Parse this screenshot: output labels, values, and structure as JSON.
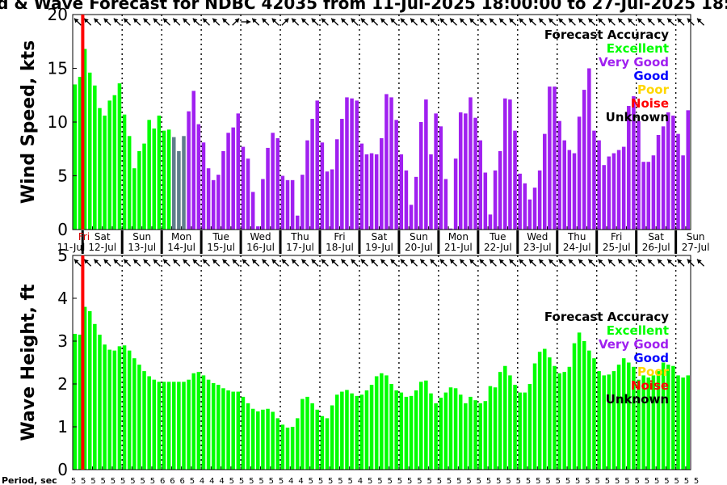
{
  "title": "d & Wave Forecast for NDBC 42035 from 11-Jul-2025 18:00:00 to 27-Jul-2025 18:",
  "legend": {
    "title": "Forecast Accuracy",
    "items": [
      {
        "label": "Excellent",
        "color": "#00ff00"
      },
      {
        "label": "Very Good",
        "color": "#a020f0"
      },
      {
        "label": "Good",
        "color": "#0000ff"
      },
      {
        "label": "Poor",
        "color": "#ffd700"
      },
      {
        "label": "Noise",
        "color": "#ff0000"
      },
      {
        "label": "Unknown",
        "color": "#000000"
      }
    ]
  },
  "days": [
    {
      "dow": "Fri",
      "date": "11-Jul"
    },
    {
      "dow": "Sat",
      "date": "12-Jul"
    },
    {
      "dow": "Sun",
      "date": "13-Jul"
    },
    {
      "dow": "Mon",
      "date": "14-Jul"
    },
    {
      "dow": "Tue",
      "date": "15-Jul"
    },
    {
      "dow": "Wed",
      "date": "16-Jul"
    },
    {
      "dow": "Thu",
      "date": "17-Jul"
    },
    {
      "dow": "Fri",
      "date": "18-Jul"
    },
    {
      "dow": "Sat",
      "date": "19-Jul"
    },
    {
      "dow": "Sun",
      "date": "20-Jul"
    },
    {
      "dow": "Mon",
      "date": "21-Jul"
    },
    {
      "dow": "Tue",
      "date": "22-Jul"
    },
    {
      "dow": "Wed",
      "date": "23-Jul"
    },
    {
      "dow": "Thu",
      "date": "24-Jul"
    },
    {
      "dow": "Fri",
      "date": "25-Jul"
    },
    {
      "dow": "Sat",
      "date": "26-Jul"
    },
    {
      "dow": "Sun",
      "date": "27-Jul"
    }
  ],
  "period_label": "Period, sec",
  "colors": {
    "excellent": "#00ff00",
    "very_good": "#a020f0",
    "mixed": "#607d8b",
    "now_line": "#ff0000",
    "grid": "#000000"
  },
  "chart_data": [
    {
      "type": "bar",
      "name": "wind",
      "ylabel": "Wind Speed, kts",
      "ylim": [
        0,
        20
      ],
      "yticks": [
        0,
        5,
        10,
        15,
        20
      ],
      "grid": "vertical dotted at midnight",
      "legend_position": "top-right",
      "time_step_hours": 3,
      "start": "11-Jul-2025 18:00",
      "values": [
        13.5,
        14.2,
        16.8,
        14.6,
        13.4,
        11.3,
        10.6,
        12.0,
        12.5,
        13.6,
        10.7,
        8.7,
        5.7,
        7.3,
        8.0,
        10.2,
        9.4,
        10.6,
        9.2,
        9.3,
        8.6,
        7.3,
        8.7,
        11.0,
        12.9,
        9.8,
        8.1,
        5.7,
        4.6,
        5.1,
        7.3,
        9.0,
        9.5,
        10.8,
        7.7,
        6.6,
        3.5,
        0.3,
        4.7,
        7.6,
        9.0,
        8.5,
        5.0,
        4.6,
        4.6,
        1.3,
        5.1,
        8.3,
        10.3,
        12.0,
        8.1,
        5.4,
        5.6,
        8.4,
        10.3,
        12.3,
        12.2,
        12.0,
        8.0,
        7.0,
        7.1,
        7.0,
        8.5,
        12.6,
        12.3,
        10.2,
        7.0,
        5.5,
        2.3,
        4.9,
        10.0,
        12.1,
        7.0,
        10.8,
        9.6,
        4.7,
        0.1,
        6.6,
        10.9,
        10.8,
        12.3,
        10.4,
        8.3,
        5.3,
        1.4,
        5.5,
        7.3,
        12.2,
        12.1,
        9.2,
        5.2,
        4.3,
        2.8,
        3.9,
        5.5,
        8.9,
        13.3,
        13.3,
        10.1,
        8.3,
        7.4,
        7.1,
        10.5,
        13.0,
        15.0,
        9.2,
        8.3,
        6.0,
        6.8,
        7.1,
        7.4,
        7.7,
        11.5,
        12.4,
        10.1,
        6.3,
        6.3,
        6.9,
        8.8,
        9.6,
        10.9,
        10.6,
        8.9,
        6.9,
        11.1
      ],
      "accuracy": [
        "excellent",
        "excellent",
        "excellent",
        "excellent",
        "excellent",
        "excellent",
        "excellent",
        "excellent",
        "excellent",
        "excellent",
        "excellent",
        "excellent",
        "excellent",
        "excellent",
        "excellent",
        "excellent",
        "excellent",
        "excellent",
        "excellent",
        "excellent",
        "mixed",
        "mixed",
        "mixed",
        "very_good",
        "very_good",
        "very_good",
        "very_good",
        "very_good",
        "very_good",
        "very_good",
        "very_good",
        "very_good",
        "very_good",
        "very_good",
        "very_good",
        "very_good",
        "very_good",
        "very_good",
        "very_good",
        "very_good",
        "very_good",
        "very_good",
        "very_good",
        "very_good",
        "very_good",
        "very_good",
        "very_good",
        "very_good",
        "very_good",
        "very_good",
        "very_good",
        "very_good",
        "very_good",
        "very_good",
        "very_good",
        "very_good",
        "very_good",
        "very_good",
        "very_good",
        "very_good",
        "very_good",
        "very_good",
        "very_good",
        "very_good",
        "very_good",
        "very_good",
        "very_good",
        "very_good",
        "very_good",
        "very_good",
        "very_good",
        "very_good",
        "very_good",
        "very_good",
        "very_good",
        "very_good",
        "very_good",
        "very_good",
        "very_good",
        "very_good",
        "very_good",
        "very_good",
        "very_good",
        "very_good",
        "very_good",
        "very_good",
        "very_good",
        "very_good",
        "very_good",
        "very_good",
        "very_good",
        "very_good",
        "very_good",
        "very_good",
        "very_good",
        "very_good",
        "very_good",
        "very_good",
        "very_good",
        "very_good",
        "very_good",
        "very_good",
        "very_good",
        "very_good",
        "very_good",
        "very_good",
        "very_good",
        "very_good",
        "very_good",
        "very_good",
        "very_good",
        "very_good",
        "very_good",
        "very_good",
        "very_good",
        "very_good",
        "very_good",
        "very_good",
        "very_good",
        "very_good",
        "very_good",
        "very_good",
        "very_good",
        "very_good",
        "very_good"
      ],
      "arrows": [
        "NW",
        "NW",
        "NW",
        "NW",
        "NW",
        "NW",
        "NW",
        "NW",
        "NW",
        "NW",
        "NW",
        "NW",
        "NW",
        "NW",
        "NW",
        "NW",
        "NW",
        "NW",
        "NW",
        "NW",
        "NW",
        "NW",
        "NW",
        "NW",
        "NW",
        "NW",
        "NW",
        "NW",
        "NW",
        "NW",
        "NW",
        "NW",
        "NE",
        "E",
        "E",
        "E",
        "NW",
        "NW",
        "NW",
        "E",
        "NW",
        "NW",
        "NE",
        "NW",
        "NW",
        "NW",
        "NW",
        "NW",
        "NW",
        "NW",
        "NW",
        "NW",
        "NW",
        "NW",
        "NW",
        "NW",
        "NW",
        "NW",
        "NW",
        "NW",
        "NW",
        "NW",
        "NW",
        "NW",
        "NW",
        "NW",
        "NW",
        "NW",
        "NW",
        "NW",
        "NW",
        "NW",
        "NW",
        "NW",
        "NW",
        "NW",
        "NW",
        "NW",
        "NW",
        "NW",
        "NW",
        "NW",
        "NW",
        "NW",
        "NW",
        "NW",
        "NW",
        "NW",
        "NW",
        "NW",
        "NW",
        "NW",
        "NW",
        "NW",
        "NW",
        "NW",
        "NW",
        "NW",
        "NW",
        "NW",
        "NW",
        "NW",
        "NW",
        "NW",
        "NW",
        "NW",
        "NW",
        "NW",
        "NW",
        "NW",
        "NW",
        "NW",
        "NW",
        "NW",
        "NW",
        "NW",
        "NW",
        "NW",
        "NW",
        "NW",
        "NW",
        "NW",
        "NW",
        "NW",
        "NW",
        "NW",
        "NW",
        "NW"
      ]
    },
    {
      "type": "bar",
      "name": "wave",
      "ylabel": "Wave Height, ft",
      "ylim": [
        0,
        5
      ],
      "yticks": [
        0,
        1,
        2,
        3,
        4,
        5
      ],
      "grid": "vertical dotted at midnight",
      "legend_position": "top-right",
      "time_step_hours": 3,
      "start": "11-Jul-2025 18:00",
      "values": [
        3.17,
        3.15,
        3.8,
        3.7,
        3.4,
        3.15,
        2.92,
        2.8,
        2.78,
        2.88,
        2.9,
        2.78,
        2.6,
        2.45,
        2.3,
        2.18,
        2.1,
        2.05,
        2.05,
        2.05,
        2.05,
        2.05,
        2.05,
        2.1,
        2.25,
        2.28,
        2.2,
        2.1,
        2.02,
        1.98,
        1.9,
        1.85,
        1.82,
        1.82,
        1.7,
        1.55,
        1.42,
        1.36,
        1.4,
        1.42,
        1.35,
        1.2,
        1.05,
        0.98,
        1.0,
        1.2,
        1.65,
        1.7,
        1.55,
        1.4,
        1.25,
        1.2,
        1.5,
        1.75,
        1.82,
        1.86,
        1.78,
        1.72,
        1.75,
        1.85,
        1.98,
        2.18,
        2.25,
        2.2,
        2.0,
        1.85,
        1.8,
        1.7,
        1.72,
        1.85,
        2.05,
        2.08,
        1.78,
        1.55,
        1.68,
        1.8,
        1.92,
        1.9,
        1.75,
        1.55,
        1.7,
        1.62,
        1.55,
        1.6,
        1.95,
        1.92,
        2.28,
        2.42,
        2.2,
        1.98,
        1.8,
        1.8,
        2.0,
        2.48,
        2.75,
        2.82,
        2.62,
        2.42,
        2.25,
        2.28,
        2.4,
        2.95,
        3.2,
        3.0,
        2.78,
        2.6,
        2.3,
        2.2,
        2.22,
        2.3,
        2.45,
        2.6,
        2.5,
        2.4,
        2.1,
        2.2,
        2.15,
        2.2,
        2.3,
        2.5,
        2.45,
        2.42,
        2.2,
        2.15,
        2.2
      ],
      "accuracy_all": "excellent",
      "arrows": [
        "NW",
        "NW",
        "NW",
        "NW",
        "NW",
        "NW",
        "NW",
        "NW",
        "NW",
        "NW",
        "NW",
        "NW",
        "NW",
        "NW",
        "NW",
        "NW",
        "NW",
        "NW",
        "NW",
        "NW",
        "NW",
        "NW",
        "NW",
        "NW",
        "NW",
        "NW",
        "NW",
        "NW",
        "NW",
        "NW",
        "NW",
        "NW",
        "NW",
        "NW",
        "NW",
        "NW",
        "NW",
        "NW",
        "NW",
        "NW",
        "NW",
        "NW",
        "NW",
        "NW",
        "NW",
        "NW",
        "NW",
        "NW",
        "NW",
        "NW",
        "NW",
        "NW",
        "NW",
        "NW",
        "NW",
        "NW",
        "NW",
        "NW",
        "NW",
        "NW",
        "NW",
        "NW",
        "NW",
        "NW",
        "NW",
        "NW",
        "NW",
        "NW",
        "NW",
        "NW",
        "NW",
        "NW",
        "NW",
        "NW",
        "NW",
        "NW",
        "NW",
        "NW",
        "NW",
        "NW",
        "NW",
        "NW",
        "NW",
        "NW",
        "NW",
        "NW",
        "NW",
        "NW",
        "NW",
        "NW",
        "NW",
        "NW",
        "NW",
        "NW",
        "NW",
        "NW",
        "NW",
        "NW",
        "NW",
        "NW",
        "NW",
        "NW",
        "NW",
        "NW",
        "NW",
        "NW",
        "NW",
        "NW",
        "NW",
        "NW",
        "NW",
        "NW",
        "NW",
        "NW",
        "NW",
        "NW",
        "NW",
        "NW",
        "NW",
        "NW",
        "NW",
        "NW",
        "NW",
        "NW",
        "NW",
        "NW",
        "NW",
        "NW"
      ]
    }
  ],
  "periods": [
    5,
    5,
    5,
    5,
    5,
    5,
    5,
    5,
    5,
    5,
    5,
    5,
    5,
    5,
    5,
    5,
    5,
    6,
    6,
    6,
    6,
    6,
    6,
    5,
    5,
    5,
    4,
    4,
    4,
    4,
    4,
    4,
    5,
    5,
    5,
    5,
    5,
    5,
    5,
    5,
    5,
    5,
    5,
    5,
    4,
    4,
    4,
    4,
    5,
    5,
    5,
    5,
    5,
    5,
    5,
    5,
    5,
    5,
    4,
    5,
    5,
    5,
    5,
    5,
    5,
    5,
    5,
    5,
    5,
    5,
    5,
    5,
    5,
    5,
    5,
    5,
    5,
    5,
    5,
    5,
    5,
    5,
    5,
    5,
    5,
    5,
    5,
    5,
    5,
    5,
    5,
    5,
    5,
    5,
    5,
    5,
    5,
    5,
    5,
    5,
    5,
    5,
    5,
    5,
    5,
    5,
    5,
    5,
    5,
    5,
    5,
    5,
    5,
    5,
    5,
    5,
    5,
    5,
    5,
    5,
    5,
    5,
    5,
    5,
    5,
    5,
    5,
    5
  ]
}
